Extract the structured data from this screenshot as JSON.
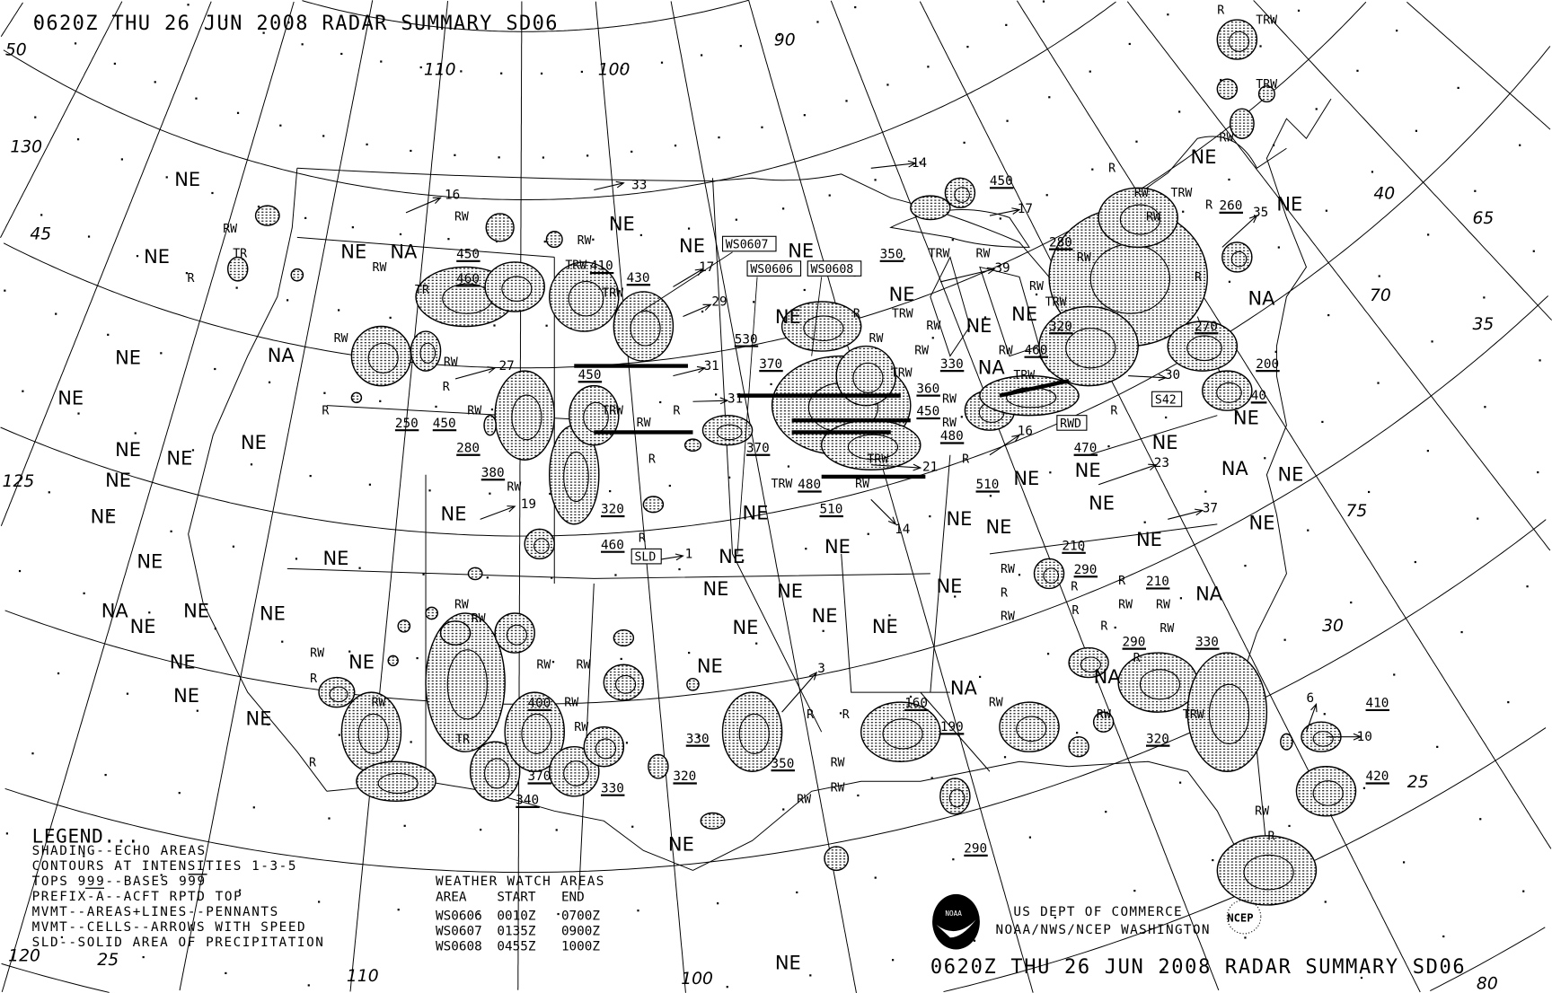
{
  "header": {
    "title": "0620Z THU 26 JUN 2008 RADAR SUMMARY SD06"
  },
  "footer": {
    "title": "0620Z THU 26 JUN 2008 RADAR SUMMARY SD06",
    "agency_line1": "US DEPT OF COMMERCE",
    "agency_line2": "NOAA/NWS/NCEP WASHINGTON",
    "noaa_logo": "NOAA",
    "ncep_logo": "NCEP"
  },
  "legend": {
    "heading": "LEGEND...",
    "lines": [
      "SHADING--ECHO AREAS",
      "CONTOURS AT INTENSITIES 1-3-5",
      "TOPS 999--BASES 999",
      "PREFIX-A--ACFT RPTD TOP",
      "MVMT--AREAS+LINES--PENNANTS",
      "MVMT--CELLS--ARROWS WITH SPEED",
      "SLD--SOLID AREA OF PRECIPITATION"
    ]
  },
  "watch_table": {
    "heading": "WEATHER WATCH AREAS",
    "columns": [
      "AREA",
      "START",
      "END"
    ],
    "rows": [
      [
        "WS0606",
        "0010Z",
        "0700Z"
      ],
      [
        "WS0607",
        "0135Z",
        "0900Z"
      ],
      [
        "WS0608",
        "0455Z",
        "1000Z"
      ]
    ]
  },
  "map": {
    "colors": {
      "ink": "#000000",
      "background": "#ffffff"
    },
    "grid_labels": [
      "110",
      "100",
      "90",
      "50",
      "130",
      "45",
      "125",
      "120",
      "25",
      "110",
      "100",
      "40",
      "65",
      "70",
      "35",
      "75",
      "30",
      "25",
      "80"
    ],
    "region_codes": [
      "NE",
      "NE",
      "NE",
      "NA",
      "NE",
      "NE",
      "NE",
      "NE",
      "NE",
      "NE",
      "NE",
      "NA",
      "NE",
      "NE",
      "NA",
      "NE",
      "NA",
      "NE",
      "NE",
      "NE",
      "NE",
      "NE",
      "NE",
      "NE",
      "NE",
      "NE",
      "NE",
      "NE",
      "NE",
      "NE",
      "NE",
      "NE",
      "NE",
      "NE",
      "NE",
      "NE",
      "NE",
      "NE",
      "NE",
      "NE",
      "NE",
      "NE",
      "NA",
      "NE",
      "NE",
      "NA",
      "NE",
      "NA",
      "NE",
      "NE",
      "NE",
      "NE",
      "NE",
      "NE",
      "NE",
      "NE",
      "NA",
      "NA",
      "NE",
      "NE"
    ],
    "tops": [
      "450",
      "460",
      "410",
      "430",
      "250",
      "450",
      "280",
      "380",
      "530",
      "450",
      "370",
      "370",
      "480",
      "510",
      "320",
      "460",
      "350",
      "450",
      "360",
      "450",
      "480",
      "330",
      "460",
      "320",
      "280",
      "260",
      "270",
      "200",
      "40",
      "510",
      "470",
      "210",
      "290",
      "210",
      "290",
      "330",
      "160",
      "190",
      "320",
      "410",
      "420",
      "400",
      "370",
      "340",
      "330",
      "330",
      "320",
      "350",
      "290"
    ],
    "speeds": [
      "16",
      "33",
      "17",
      "29",
      "31",
      "27",
      "31",
      "19",
      "1",
      "14",
      "17",
      "39",
      "35",
      "30",
      "16",
      "21",
      "14",
      "23",
      "37",
      "3",
      "6",
      "10"
    ],
    "precip_types": [
      "RW",
      "RW",
      "TR",
      "R",
      "RW",
      "TR",
      "RW",
      "TRW",
      "TRW",
      "RW",
      "RW",
      "R",
      "RW",
      "R",
      "TRW",
      "RW",
      "R",
      "R",
      "RW",
      "R",
      "R",
      "TRW",
      "RW",
      "RW",
      "RW",
      "TRW",
      "RW",
      "RW",
      "TRW",
      "RW",
      "TRW",
      "R",
      "TRW",
      "RW",
      "RW",
      "TRW",
      "RW",
      "TRW",
      "RW",
      "R",
      "RW",
      "TRW",
      "RW",
      "R",
      "RW",
      "R",
      "TRW",
      "TRW",
      "R",
      "R",
      "RW",
      "R",
      "RW",
      "R",
      "R",
      "R",
      "RW",
      "RW",
      "R",
      "RW",
      "R",
      "RW",
      "RW",
      "TRW",
      "RW",
      "R",
      "RW",
      "RW",
      "RW",
      "RW",
      "RW",
      "R",
      "RW",
      "TR",
      "RW",
      "RW",
      "R",
      "R",
      "R",
      "RW",
      "RW",
      "RW"
    ],
    "watch_boxes": [
      "WS0607",
      "WS0606",
      "WS0608",
      "SLD",
      "RWD",
      "S42"
    ]
  }
}
